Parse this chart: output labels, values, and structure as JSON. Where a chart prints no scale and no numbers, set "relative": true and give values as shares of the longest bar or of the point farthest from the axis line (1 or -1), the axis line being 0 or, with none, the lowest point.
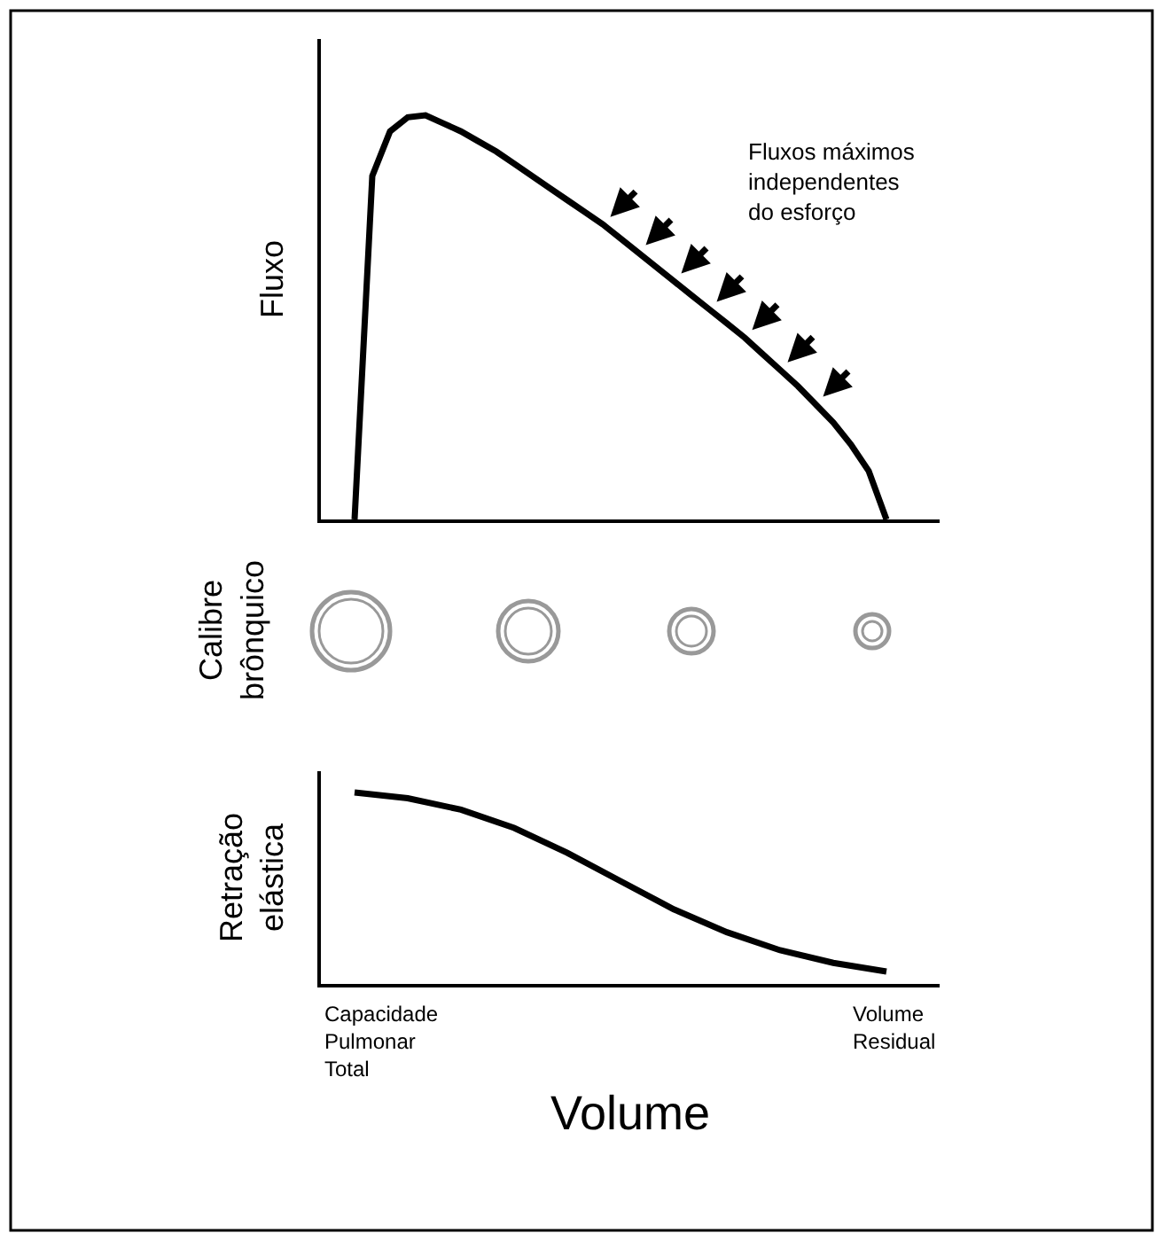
{
  "chart_data": [
    {
      "type": "line",
      "relative": true,
      "ylabel": "Fluxo",
      "color": "#000000",
      "categories": [
        null,
        null,
        null,
        null,
        null,
        null,
        null,
        null,
        null,
        null,
        null,
        null,
        null,
        null,
        null,
        null,
        null,
        null,
        null,
        null,
        null,
        null,
        null,
        null,
        null,
        null,
        null,
        null,
        null,
        null,
        null
      ],
      "values": [
        0,
        0.85,
        0.96,
        0.995,
        1.0,
        0.98,
        0.96,
        0.935,
        0.91,
        0.88,
        0.85,
        0.82,
        0.79,
        0.76,
        0.73,
        0.695,
        0.66,
        0.625,
        0.59,
        0.555,
        0.52,
        0.485,
        0.45,
        0.41,
        0.37,
        0.33,
        0.285,
        0.24,
        0.185,
        0.12,
        0
      ],
      "annotations": [
        "Fluxos máximos\nindependentes\ndo esforço"
      ]
    },
    {
      "type": "other",
      "ylabel": "Calibre\nbrônquico"
    },
    {
      "type": "line",
      "relative": true,
      "ylabel": "Retração\nelástica",
      "xlabel": "Volume",
      "color": "#000000",
      "categories": [
        null,
        null,
        null,
        null,
        null,
        null,
        null,
        null,
        null,
        null,
        null
      ],
      "values": [
        1.0,
        0.97,
        0.91,
        0.815,
        0.685,
        0.537,
        0.39,
        0.27,
        0.176,
        0.11,
        0.065
      ],
      "annotations": [
        "Capacidade\nPulmonar\nTotal",
        "Volume\nResidual"
      ]
    }
  ]
}
